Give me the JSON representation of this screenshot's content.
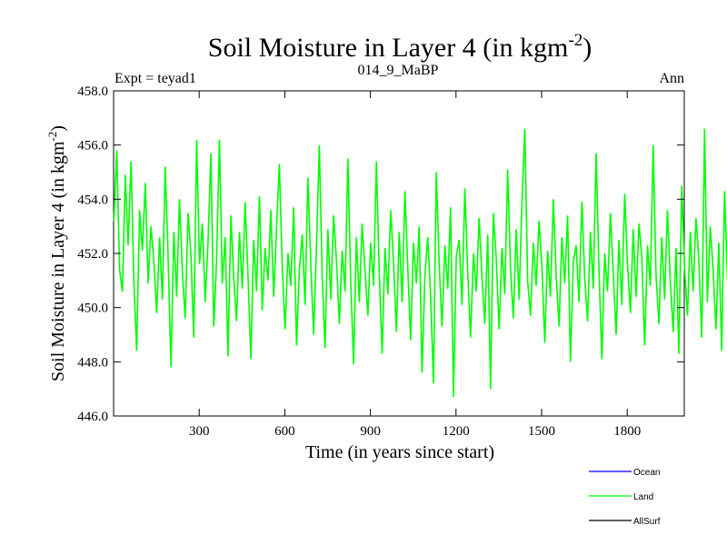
{
  "chart_data": {
    "type": "line",
    "title": "Soil Moisture in Layer 4 (in kgm",
    "title_superscript": "-2",
    "title_suffix": ")",
    "subtitle_left": "Expt = teyad1",
    "subtitle_center": "014_9_MaBP",
    "subtitle_right": "Ann",
    "xlabel": "Time (in years since start)",
    "ylabel": "Soil Moisture in Layer 4 (in kgm",
    "ylabel_superscript": "-2",
    "ylabel_suffix": ")",
    "xlim": [
      0,
      2000
    ],
    "ylim": [
      446.0,
      458.0
    ],
    "x_ticks": [
      300,
      600,
      900,
      1200,
      1500,
      1800
    ],
    "x_tick_labels": [
      "300",
      "600",
      "900",
      "1200",
      "1500",
      "1800"
    ],
    "y_ticks": [
      446.0,
      448.0,
      450.0,
      452.0,
      454.0,
      456.0,
      458.0
    ],
    "y_tick_labels": [
      "446.0",
      "448.0",
      "450.0",
      "452.0",
      "454.0",
      "456.0",
      "458.0"
    ],
    "legend_position": "bottom-right",
    "series": [
      {
        "name": "Ocean",
        "color": "#0000ff",
        "x": [],
        "values": []
      },
      {
        "name": "Land",
        "color": "#00ff00",
        "x_start": 1,
        "x_step": 10,
        "values": [
          453.2,
          455.8,
          451.4,
          450.6,
          454.9,
          452.3,
          455.4,
          451.0,
          448.4,
          453.6,
          452.1,
          454.6,
          450.9,
          453.0,
          451.7,
          449.8,
          452.6,
          450.3,
          455.2,
          451.9,
          447.8,
          452.8,
          450.4,
          454.0,
          451.3,
          449.6,
          453.5,
          452.0,
          448.9,
          456.2,
          451.6,
          453.1,
          450.2,
          452.4,
          455.7,
          449.3,
          451.8,
          456.2,
          450.9,
          452.6,
          448.2,
          453.4,
          451.1,
          449.5,
          452.8,
          450.7,
          453.9,
          451.2,
          448.1,
          452.5,
          450.6,
          454.1,
          449.9,
          452.2,
          451.0,
          453.6,
          450.4,
          452.9,
          455.3,
          451.5,
          449.2,
          452.0,
          450.8,
          453.7,
          448.6,
          451.4,
          452.7,
          450.1,
          454.8,
          451.6,
          449.0,
          452.3,
          456.0,
          451.2,
          448.5,
          452.9,
          450.3,
          453.4,
          451.8,
          449.4,
          452.1,
          450.6,
          455.5,
          451.0,
          447.9,
          452.6,
          450.2,
          453.1,
          451.4,
          449.7,
          452.4,
          450.8,
          455.4,
          451.3,
          448.3,
          452.2,
          450.5,
          453.6,
          451.7,
          449.1,
          452.8,
          450.2,
          454.3,
          451.5,
          448.8,
          452.4,
          450.9,
          453.0,
          447.6,
          451.2,
          452.6,
          450.4,
          447.2,
          455.0,
          451.6,
          449.3,
          452.3,
          450.7,
          453.7,
          446.7,
          451.9,
          452.5,
          450.1,
          454.4,
          451.3,
          448.9,
          452.0,
          450.6,
          453.3,
          451.1,
          449.4,
          452.7,
          447.0,
          453.5,
          451.8,
          449.2,
          452.2,
          450.5,
          455.1,
          451.4,
          449.6,
          452.9,
          450.3,
          453.8,
          456.6,
          451.0,
          449.7,
          452.4,
          450.8,
          453.2,
          451.5,
          448.7,
          452.1,
          450.4,
          454.0,
          451.2,
          449.3,
          452.6,
          450.9,
          453.4,
          448.0,
          451.7,
          452.3,
          450.2,
          453.9,
          451.1,
          449.5,
          452.8,
          450.7,
          455.7,
          451.4,
          448.1,
          452.0,
          450.6,
          453.5,
          451.3,
          449.0,
          452.5,
          450.1,
          454.2,
          451.6,
          449.8,
          452.9,
          450.4,
          453.1,
          451.9,
          448.6,
          452.3,
          450.8,
          456.0,
          451.2,
          449.4,
          452.6,
          450.3,
          453.6,
          451.0,
          449.1,
          452.2,
          448.3,
          454.5,
          451.5,
          449.7,
          452.8,
          450.6,
          453.3,
          451.8,
          448.9,
          456.6,
          450.2,
          453.0,
          451.4,
          449.2,
          452.4,
          448.4,
          454.3,
          451.1,
          449.9,
          452.7,
          450.7
        ]
      },
      {
        "name": "AllSurf",
        "color": "#000000",
        "x": [],
        "values": []
      }
    ]
  }
}
